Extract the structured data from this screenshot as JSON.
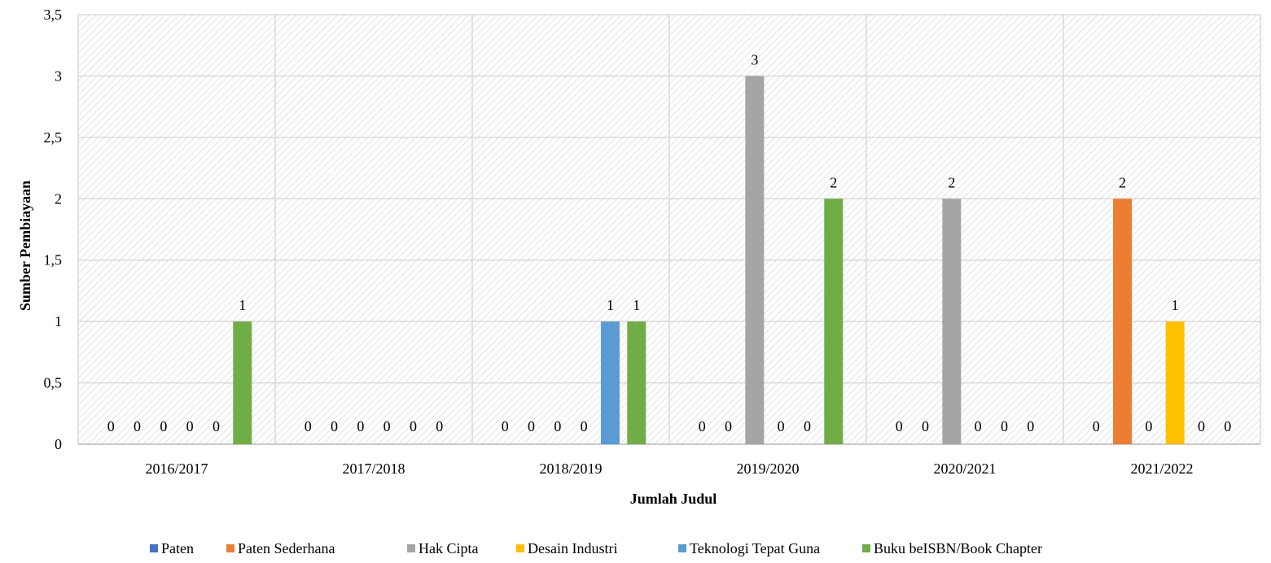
{
  "chart_data": {
    "type": "bar",
    "title": "",
    "xlabel": "Jumlah Judul",
    "ylabel": "Sumber Pembiayaan",
    "ylim": [
      0,
      3.5
    ],
    "yticks": [
      "0",
      "0,5",
      "1",
      "1,5",
      "2",
      "2,5",
      "3",
      "3,5"
    ],
    "grid": true,
    "legend_position": "bottom",
    "categories": [
      "2016/2017",
      "2017/2018",
      "2018/2019",
      "2019/2020",
      "2020/2021",
      "2021/2022"
    ],
    "series": [
      {
        "name": "Paten",
        "color": "#4472C4",
        "values": [
          0,
          0,
          0,
          0,
          0,
          0
        ]
      },
      {
        "name": "Paten Sederhana",
        "color": "#ED7D31",
        "values": [
          0,
          0,
          0,
          0,
          0,
          2
        ]
      },
      {
        "name": "Hak Cipta",
        "color": "#A5A5A5",
        "values": [
          0,
          0,
          0,
          3,
          2,
          0
        ]
      },
      {
        "name": "Desain Industri",
        "color": "#FFC000",
        "values": [
          0,
          0,
          0,
          0,
          0,
          1
        ]
      },
      {
        "name": "Teknologi Tepat Guna",
        "color": "#5B9BD5",
        "values": [
          0,
          0,
          1,
          0,
          0,
          0
        ]
      },
      {
        "name": "Buku beISBN/Book Chapter",
        "color": "#70AD47",
        "values": [
          1,
          0,
          1,
          2,
          0,
          0
        ]
      }
    ]
  }
}
